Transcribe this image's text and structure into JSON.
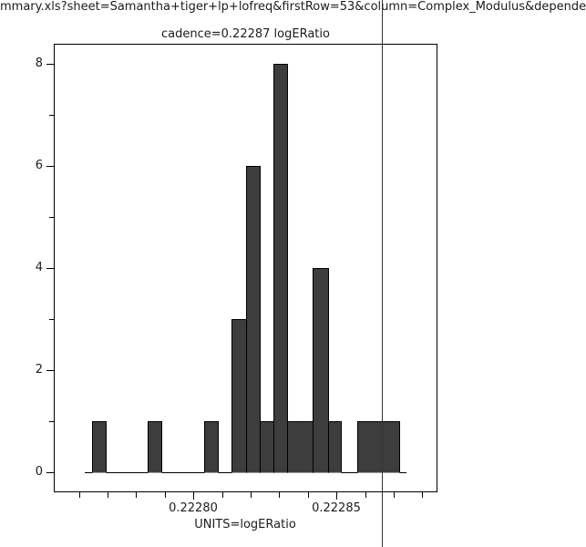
{
  "title": {
    "line1": "mmary.xls?sheet=Samantha+tiger+lp+lofreq&firstRow=53&column=Complex_Modulus&depende",
    "line2": "cadence=0.22287 logERatio"
  },
  "colors": {
    "bar_fill": "#3d3d3d",
    "bar_border": "#000000",
    "marker_line": "#333333",
    "axis": "#000000",
    "background": "#ffffff"
  },
  "chart_data": {
    "type": "bar",
    "subtype": "histogram",
    "title": "cadence=0.22287 logERatio",
    "xlabel": "UNITS=logERatio",
    "ylabel": "",
    "xlim": [
      0.2227512,
      0.2228853
    ],
    "ylim": [
      -0.4,
      8.4
    ],
    "grid": false,
    "legend": "none",
    "x_ticks": [
      {
        "value": 0.22276,
        "major": false,
        "label": ""
      },
      {
        "value": 0.22277,
        "major": false,
        "label": ""
      },
      {
        "value": 0.22278,
        "major": false,
        "label": ""
      },
      {
        "value": 0.22279,
        "major": false,
        "label": ""
      },
      {
        "value": 0.2228,
        "major": true,
        "label": "0.22280"
      },
      {
        "value": 0.22281,
        "major": false,
        "label": ""
      },
      {
        "value": 0.22282,
        "major": false,
        "label": ""
      },
      {
        "value": 0.22283,
        "major": false,
        "label": ""
      },
      {
        "value": 0.22284,
        "major": false,
        "label": ""
      },
      {
        "value": 0.22285,
        "major": true,
        "label": "0.22285"
      },
      {
        "value": 0.22286,
        "major": false,
        "label": ""
      },
      {
        "value": 0.22287,
        "major": false,
        "label": ""
      },
      {
        "value": 0.22288,
        "major": false,
        "label": ""
      }
    ],
    "y_ticks": [
      {
        "value": 0,
        "major": true,
        "label": "0"
      },
      {
        "value": 1,
        "major": false,
        "label": ""
      },
      {
        "value": 2,
        "major": true,
        "label": "2"
      },
      {
        "value": 3,
        "major": false,
        "label": ""
      },
      {
        "value": 4,
        "major": true,
        "label": "4"
      },
      {
        "value": 5,
        "major": false,
        "label": ""
      },
      {
        "value": 6,
        "major": true,
        "label": "6"
      },
      {
        "value": 7,
        "major": false,
        "label": ""
      },
      {
        "value": 8,
        "major": true,
        "label": "8"
      }
    ],
    "bars": [
      {
        "x0": 0.2227647,
        "x1": 0.2227698,
        "count": 1
      },
      {
        "x0": 0.2227841,
        "x1": 0.2227892,
        "count": 1
      },
      {
        "x0": 0.2228036,
        "x1": 0.2228087,
        "count": 1
      },
      {
        "x0": 0.2228132,
        "x1": 0.2228188,
        "count": 3
      },
      {
        "x0": 0.2228188,
        "x1": 0.2228234,
        "count": 6
      },
      {
        "x0": 0.2228234,
        "x1": 0.2228282,
        "count": 1
      },
      {
        "x0": 0.2228282,
        "x1": 0.222833,
        "count": 8
      },
      {
        "x0": 0.222833,
        "x1": 0.2228419,
        "count": 1
      },
      {
        "x0": 0.2228419,
        "x1": 0.2228473,
        "count": 4
      },
      {
        "x0": 0.2228473,
        "x1": 0.2228518,
        "count": 1
      },
      {
        "x0": 0.2228573,
        "x1": 0.2228721,
        "count": 1
      }
    ],
    "baseline": {
      "x0": 0.2227621,
      "x1": 0.2228744,
      "y": 0
    },
    "marker_line": {
      "x": 0.222866,
      "note": "vertical cadence marker spanning full image height"
    }
  }
}
